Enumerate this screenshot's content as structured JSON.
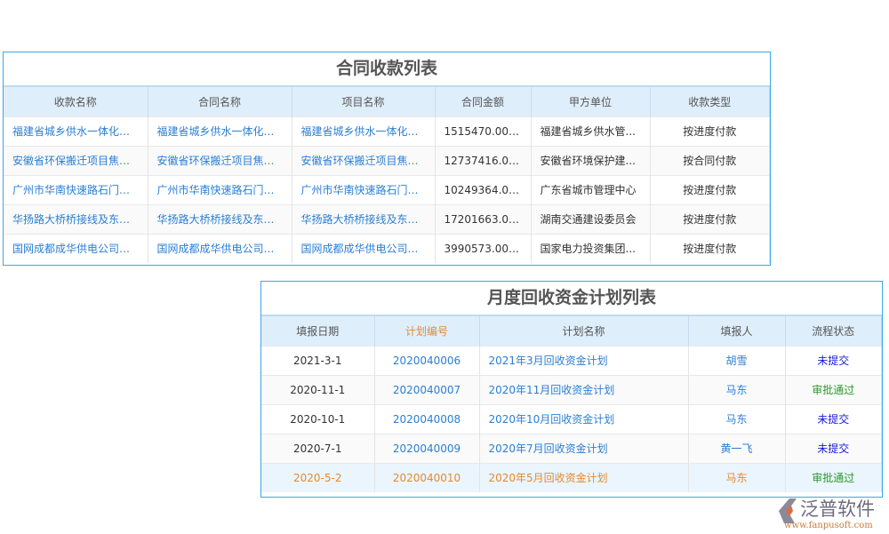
{
  "contract_table": {
    "title": "合同收款列表",
    "headers": [
      "收款名称",
      "合同名称",
      "项目名称",
      "合同金额",
      "甲方单位",
      "收款类型"
    ],
    "rows": [
      [
        "福建省城乡供水一体化工...",
        "福建省城乡供水一体化工...",
        "福建省城乡供水一体化工...",
        "1515470.0000",
        "福建省城乡供水管...",
        "按进度付款"
      ],
      [
        "安徽省环保搬迁项目焦炉...",
        "安徽省环保搬迁项目焦炉...",
        "安徽省环保搬迁项目焦炉...",
        "12737416.0000",
        "安徽省环境保护建...",
        "按合同付款"
      ],
      [
        "广州市华南快速路石门堂...",
        "广州市华南快速路石门堂...",
        "广州市华南快速路石门堂...",
        "10249364.0000",
        "广东省城市管理中心",
        "按进度付款"
      ],
      [
        "华扬路大桥桥接线及东延...",
        "华扬路大桥桥接线及东延...",
        "华扬路大桥桥接线及东延...",
        "17201663.0000",
        "湖南交通建设委员会",
        "按进度付款"
      ],
      [
        "国网成都成华供电公司南...",
        "国网成都成华供电公司南...",
        "国网成都成华供电公司南...",
        "3990573.0000",
        "国家电力投资集团...",
        "按进度付款"
      ]
    ]
  },
  "plan_table": {
    "title": "月度回收资金计划列表",
    "headers": [
      "填报日期",
      "计划编号",
      "计划名称",
      "填报人",
      "流程状态"
    ],
    "rows": [
      [
        "2021-3-1",
        "2020040006",
        "2021年3月回收资金计划",
        "胡雪",
        "未提交"
      ],
      [
        "2020-11-1",
        "2020040007",
        "2020年11月回收资金计划",
        "马东",
        "审批通过"
      ],
      [
        "2020-10-1",
        "2020040008",
        "2020年10月回收资金计划",
        "马东",
        "未提交"
      ],
      [
        "2020-7-1",
        "2020040009",
        "2020年7月回收资金计划",
        "黄一飞",
        "未提交"
      ],
      [
        "2020-5-2",
        "2020040010",
        "2020年5月回收资金计划",
        "马东",
        "审批通过"
      ]
    ]
  },
  "logo": {
    "name": "泛普软件",
    "url": "www.fanpusoft.com"
  },
  "colors": {
    "accent": "#3aa7e6",
    "link": "#2a7fd4",
    "highlight": "#e68a2e",
    "pending": "#1a1adc",
    "approved": "#2a9a2a"
  }
}
